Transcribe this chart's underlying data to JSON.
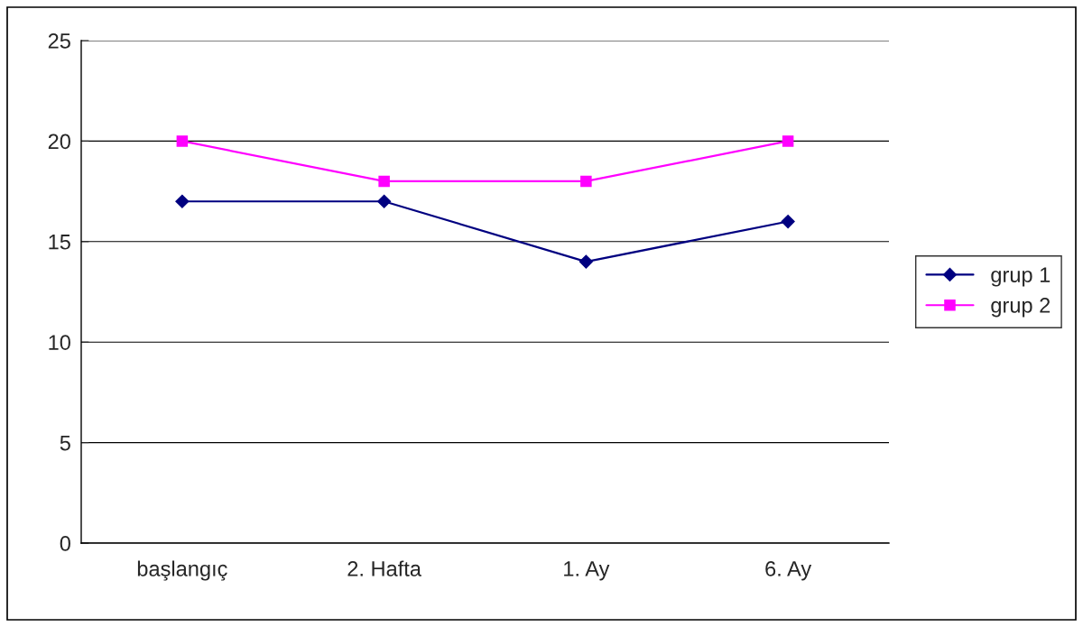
{
  "chart_data": {
    "type": "line",
    "categories": [
      "başlangıç",
      "2. Hafta",
      "1. Ay",
      "6. Ay"
    ],
    "series": [
      {
        "name": "grup 1",
        "color": "#000080",
        "marker": "diamond",
        "values": [
          17,
          17,
          14,
          16
        ]
      },
      {
        "name": "grup 2",
        "color": "#ff00ff",
        "marker": "square",
        "values": [
          20,
          18,
          18,
          20
        ]
      }
    ],
    "ylim": [
      0,
      25
    ],
    "yticks": [
      0,
      5,
      10,
      15,
      20,
      25
    ],
    "grid": "y",
    "legend": "right",
    "line_style": "solid"
  }
}
